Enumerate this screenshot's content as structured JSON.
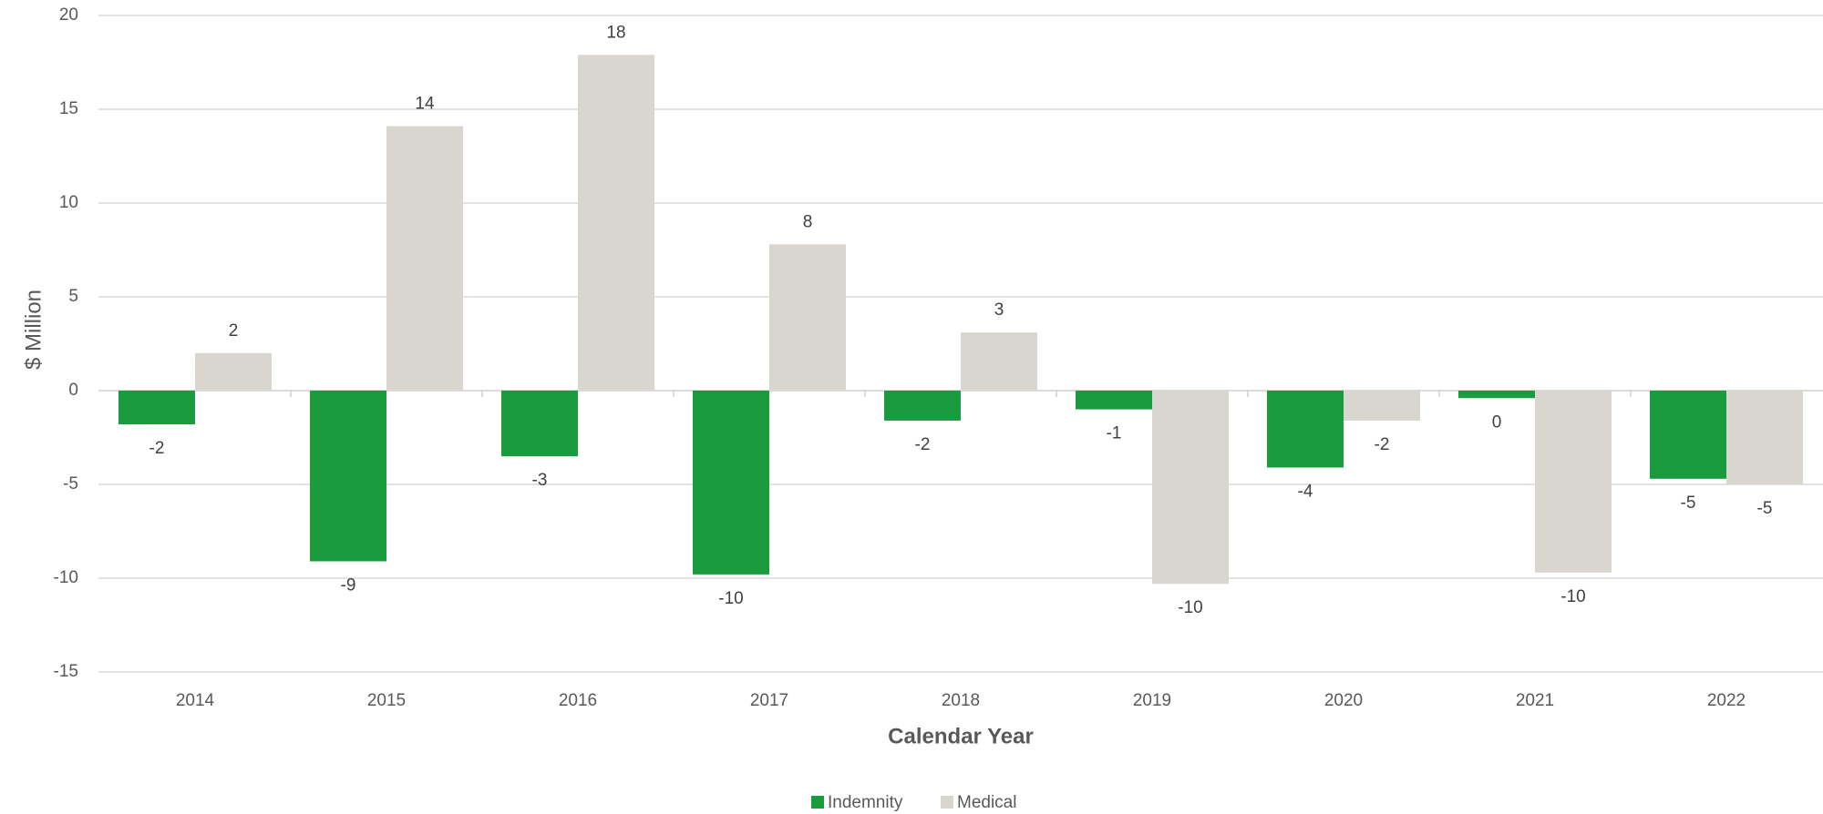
{
  "chart_data": {
    "type": "bar",
    "xlabel": "Calendar Year",
    "ylabel": "$ Million",
    "ylim": [
      -15,
      20
    ],
    "y_ticks": [
      20,
      15,
      10,
      5,
      0,
      -5,
      -10,
      -15
    ],
    "grid": true,
    "legend_position": "bottom",
    "categories": [
      "2014",
      "2015",
      "2016",
      "2017",
      "2018",
      "2019",
      "2020",
      "2021",
      "2022"
    ],
    "series": [
      {
        "name": "Indemnity",
        "color": "#1a9c3e",
        "values": [
          -1.8,
          -9.1,
          -3.5,
          -9.8,
          -1.6,
          -1.0,
          -4.1,
          -0.4,
          -4.7
        ],
        "labels": [
          "-2",
          "-9",
          "-3",
          "-10",
          "-2",
          "-1",
          "-4",
          "0",
          "-5"
        ]
      },
      {
        "name": "Medical",
        "color": "#d9d6d0",
        "values": [
          2.0,
          14.1,
          17.9,
          7.8,
          3.1,
          -10.3,
          -1.6,
          -9.7,
          -5.0
        ],
        "labels": [
          "2",
          "14",
          "18",
          "8",
          "3",
          "-10",
          "-2",
          "-10",
          "-5"
        ]
      }
    ]
  }
}
